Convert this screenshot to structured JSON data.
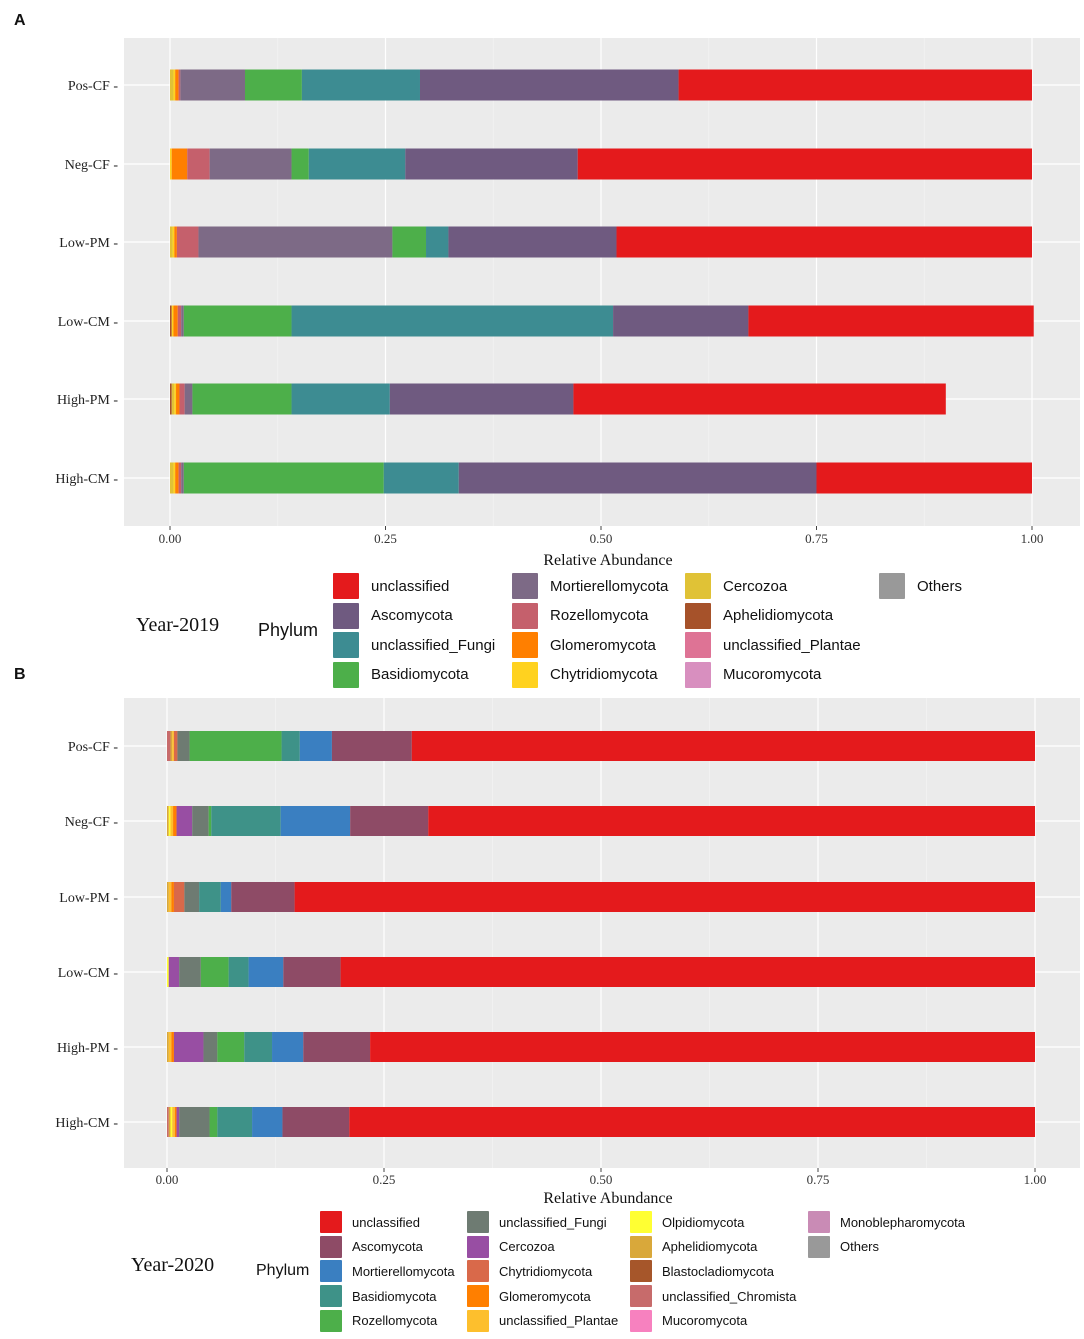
{
  "chart_data": [
    {
      "panel": "A",
      "type": "stacked-bar-horizontal",
      "xlabel": "Relative Abundance",
      "ylabel": "",
      "xlim": [
        0,
        1
      ],
      "xticks": [
        "0.00",
        "0.25",
        "0.50",
        "0.75",
        "1.00"
      ],
      "xtick_values": [
        0,
        0.25,
        0.5,
        0.75,
        1
      ],
      "year_label": "Year-2019",
      "legend_title": "Phylum",
      "categories": [
        "Pos-CF",
        "Neg-CF",
        "Low-PM",
        "Low-CM",
        "High-PM",
        "High-CM"
      ],
      "series": [
        {
          "name": "Others",
          "color": "#999999",
          "values": [
            0.0,
            0.0,
            0.0,
            0.0,
            0.0,
            0.0
          ]
        },
        {
          "name": "Mucoromycota",
          "color": "#d88fbf",
          "values": [
            0.0,
            0.0,
            0.0,
            0.0,
            0.0,
            0.0
          ]
        },
        {
          "name": "unclassified_Plantae",
          "color": "#de7395",
          "values": [
            0.0,
            0.0,
            0.0,
            0.0,
            0.0,
            0.0
          ]
        },
        {
          "name": "Aphelidiomycota",
          "color": "#a6522a",
          "values": [
            0.0,
            0.0,
            0.0,
            0.002,
            0.002,
            0.0
          ]
        },
        {
          "name": "Cercozoa",
          "color": "#e0c236",
          "values": [
            0.004,
            0.0,
            0.003,
            0.0,
            0.003,
            0.004
          ]
        },
        {
          "name": "Chytridiomycota",
          "color": "#ffd21f",
          "values": [
            0.002,
            0.002,
            0.002,
            0.002,
            0.002,
            0.002
          ]
        },
        {
          "name": "Glomeromycota",
          "color": "#ff7f00",
          "values": [
            0.004,
            0.018,
            0.003,
            0.005,
            0.004,
            0.004
          ]
        },
        {
          "name": "Rozellomycota",
          "color": "#c5606c",
          "values": [
            0.002,
            0.026,
            0.025,
            0.004,
            0.006,
            0.003
          ]
        },
        {
          "name": "Mortierellomycota",
          "color": "#7d6a86",
          "values": [
            0.075,
            0.095,
            0.225,
            0.003,
            0.009,
            0.003
          ]
        },
        {
          "name": "Basidiomycota",
          "color": "#4daf4a",
          "values": [
            0.066,
            0.02,
            0.039,
            0.125,
            0.115,
            0.232
          ]
        },
        {
          "name": "unclassified_Fungi",
          "color": "#3d8c92",
          "values": [
            0.137,
            0.112,
            0.026,
            0.373,
            0.114,
            0.087
          ]
        },
        {
          "name": "Ascomycota",
          "color": "#6f5a80",
          "values": [
            0.3,
            0.2,
            0.195,
            0.157,
            0.213,
            0.415
          ]
        },
        {
          "name": "unclassified",
          "color": "#e41a1c",
          "values": [
            0.41,
            0.527,
            0.482,
            0.331,
            0.432,
            0.25
          ]
        }
      ],
      "legend": [
        "unclassified",
        "Ascomycota",
        "unclassified_Fungi",
        "Basidiomycota",
        "Mortierellomycota",
        "Rozellomycota",
        "Glomeromycota",
        "Chytridiomycota",
        "Cercozoa",
        "Aphelidiomycota",
        "unclassified_Plantae",
        "Mucoromycota",
        "Others"
      ]
    },
    {
      "panel": "B",
      "type": "stacked-bar-horizontal",
      "xlabel": "Relative Abundance",
      "ylabel": "",
      "xlim": [
        0,
        1
      ],
      "xticks": [
        "0.00",
        "0.25",
        "0.50",
        "0.75",
        "1.00"
      ],
      "xtick_values": [
        0,
        0.25,
        0.5,
        0.75,
        1
      ],
      "year_label": "Year-2020",
      "legend_title": "Phylum",
      "categories": [
        "Pos-CF",
        "Neg-CF",
        "Low-PM",
        "Low-CM",
        "High-PM",
        "High-CM"
      ],
      "series": [
        {
          "name": "Others",
          "color": "#999999",
          "values": [
            0.0,
            0.0,
            0.0,
            0.0,
            0.0,
            0.0
          ]
        },
        {
          "name": "Monoblepharomycota",
          "color": "#c98bb5",
          "values": [
            0.0,
            0.0,
            0.0,
            0.0,
            0.0,
            0.0
          ]
        },
        {
          "name": "Mucoromycota",
          "color": "#f781bf",
          "values": [
            0.0,
            0.0,
            0.0,
            0.0,
            0.0,
            0.0
          ]
        },
        {
          "name": "unclassified_Chromista",
          "color": "#c76b6b",
          "values": [
            0.004,
            0.0,
            0.0,
            0.0,
            0.0,
            0.002
          ]
        },
        {
          "name": "Blastocladiomycota",
          "color": "#a6562a",
          "values": [
            0.0,
            0.0,
            0.0,
            0.0,
            0.0,
            0.0
          ]
        },
        {
          "name": "Aphelidiomycota",
          "color": "#d9a83a",
          "values": [
            0.002,
            0.002,
            0.002,
            0.0,
            0.002,
            0.002
          ]
        },
        {
          "name": "Olpidiomycota",
          "color": "#ffff33",
          "values": [
            0.0,
            0.002,
            0.0,
            0.002,
            0.0,
            0.002
          ]
        },
        {
          "name": "unclassified_Plantae",
          "color": "#fdbf2d",
          "values": [
            0.002,
            0.003,
            0.003,
            0.0,
            0.003,
            0.003
          ]
        },
        {
          "name": "Glomeromycota",
          "color": "#ff7f00",
          "values": [
            0.0,
            0.004,
            0.003,
            0.0,
            0.003,
            0.002
          ]
        },
        {
          "name": "Chytridiomycota",
          "color": "#d9694a",
          "values": [
            0.004,
            0.0,
            0.012,
            0.0,
            0.0,
            0.0
          ]
        },
        {
          "name": "Cercozoa",
          "color": "#984ea3",
          "values": [
            0.0,
            0.018,
            0.0,
            0.012,
            0.034,
            0.003
          ]
        },
        {
          "name": "unclassified_Fungi",
          "color": "#6e7b72",
          "values": [
            0.014,
            0.019,
            0.017,
            0.025,
            0.016,
            0.035
          ]
        },
        {
          "name": "Rozellomycota",
          "color": "#4daf4a",
          "values": [
            0.106,
            0.003,
            0.0,
            0.032,
            0.031,
            0.009
          ]
        },
        {
          "name": "Basidiomycota",
          "color": "#3e9288",
          "values": [
            0.021,
            0.08,
            0.025,
            0.023,
            0.032,
            0.04
          ]
        },
        {
          "name": "Mortierellomycota",
          "color": "#3a7fc1",
          "values": [
            0.037,
            0.08,
            0.012,
            0.04,
            0.036,
            0.035
          ]
        },
        {
          "name": "Ascomycota",
          "color": "#8e4b66",
          "values": [
            0.092,
            0.09,
            0.073,
            0.066,
            0.077,
            0.077
          ]
        },
        {
          "name": "unclassified",
          "color": "#e41a1c",
          "values": [
            0.718,
            0.699,
            0.853,
            0.8,
            0.766,
            0.79
          ]
        }
      ],
      "legend": [
        "unclassified",
        "Ascomycota",
        "Mortierellomycota",
        "Basidiomycota",
        "Rozellomycota",
        "unclassified_Fungi",
        "Cercozoa",
        "Chytridiomycota",
        "Glomeromycota",
        "unclassified_Plantae",
        "Olpidiomycota",
        "Aphelidiomycota",
        "Blastocladiomycota",
        "unclassified_Chromista",
        "Mucoromycota",
        "Monoblepharomycota",
        "Others"
      ]
    }
  ]
}
